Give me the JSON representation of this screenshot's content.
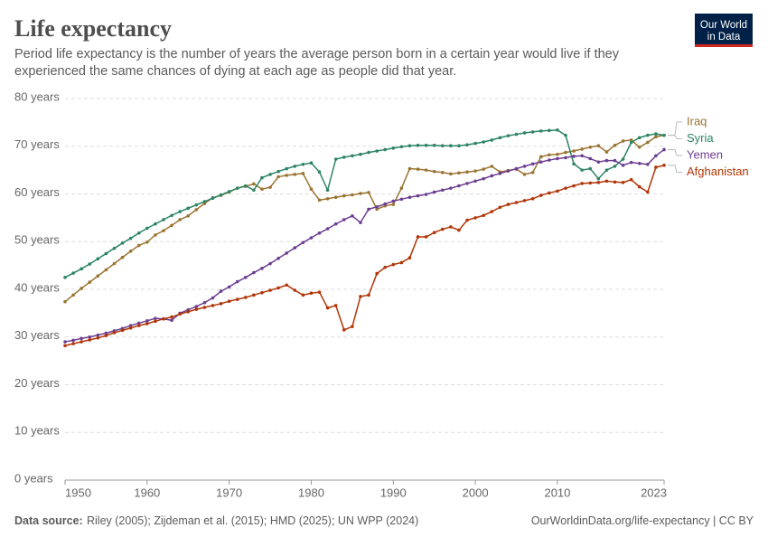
{
  "header": {
    "title": "Life expectancy",
    "subtitle": "Period life expectancy is the number of years the average person born in a certain year would live if they experienced the same chances of dying at each age as people did that year.",
    "logo": [
      "Our World",
      "in Data"
    ]
  },
  "chart_data": {
    "type": "line",
    "x": [
      1950,
      1951,
      1952,
      1953,
      1954,
      1955,
      1956,
      1957,
      1958,
      1959,
      1960,
      1961,
      1962,
      1963,
      1964,
      1965,
      1966,
      1967,
      1968,
      1969,
      1970,
      1971,
      1972,
      1973,
      1974,
      1975,
      1976,
      1977,
      1978,
      1979,
      1980,
      1981,
      1982,
      1983,
      1984,
      1985,
      1986,
      1987,
      1988,
      1989,
      1990,
      1991,
      1992,
      1993,
      1994,
      1995,
      1996,
      1997,
      1998,
      1999,
      2000,
      2001,
      2002,
      2003,
      2004,
      2005,
      2006,
      2007,
      2008,
      2009,
      2010,
      2011,
      2012,
      2013,
      2014,
      2015,
      2016,
      2017,
      2018,
      2019,
      2020,
      2021,
      2022,
      2023
    ],
    "xlim": [
      1950,
      2023
    ],
    "xticks": [
      1950,
      1960,
      1970,
      1980,
      1990,
      2000,
      2010,
      2023
    ],
    "ylim": [
      0,
      80
    ],
    "yticks": [
      {
        "value": 0,
        "label": "0 years"
      },
      {
        "value": 10,
        "label": "10 years"
      },
      {
        "value": 20,
        "label": "20 years"
      },
      {
        "value": 30,
        "label": "30 years"
      },
      {
        "value": 40,
        "label": "40 years"
      },
      {
        "value": 50,
        "label": "50 years"
      },
      {
        "value": 60,
        "label": "60 years"
      },
      {
        "value": 70,
        "label": "70 years"
      },
      {
        "value": 80,
        "label": "80 years"
      }
    ],
    "grid": true,
    "series": [
      {
        "name": "Iraq",
        "color": "#9a7432",
        "values": [
          37.4,
          38.8,
          40.2,
          41.5,
          42.8,
          44.1,
          45.4,
          46.7,
          48.0,
          49.2,
          49.9,
          51.4,
          52.3,
          53.4,
          54.6,
          55.4,
          56.7,
          58.0,
          59.2,
          59.7,
          60.4,
          61.2,
          61.6,
          62.1,
          61.0,
          61.4,
          63.6,
          63.9,
          64.1,
          64.3,
          61.0,
          58.7,
          59.0,
          59.3,
          59.6,
          59.8,
          60.1,
          60.3,
          56.8,
          57.5,
          57.8,
          61.2,
          65.3,
          65.2,
          65.0,
          64.7,
          64.5,
          64.2,
          64.4,
          64.6,
          64.8,
          65.2,
          65.8,
          64.6,
          64.9,
          65.2,
          64.1,
          64.5,
          67.8,
          68.2,
          68.3,
          68.7,
          69.0,
          69.4,
          69.8,
          70.1,
          68.8,
          70.2,
          71.1,
          71.3,
          69.8,
          70.8,
          72.0,
          72.3
        ]
      },
      {
        "name": "Syria",
        "color": "#2c8465",
        "values": [
          42.5,
          43.4,
          44.3,
          45.3,
          46.4,
          47.5,
          48.6,
          49.7,
          50.7,
          51.8,
          52.8,
          53.7,
          54.6,
          55.5,
          56.3,
          57.0,
          57.7,
          58.4,
          59.1,
          59.8,
          60.5,
          61.2,
          61.7,
          60.8,
          63.4,
          64.1,
          64.7,
          65.3,
          65.8,
          66.2,
          66.5,
          64.6,
          60.8,
          67.3,
          67.7,
          68.0,
          68.3,
          68.7,
          69.0,
          69.3,
          69.6,
          69.9,
          70.1,
          70.2,
          70.2,
          70.2,
          70.1,
          70.1,
          70.1,
          70.3,
          70.6,
          70.9,
          71.3,
          71.8,
          72.2,
          72.5,
          72.8,
          73.0,
          73.2,
          73.3,
          73.4,
          72.3,
          66.3,
          65.0,
          65.3,
          63.2,
          65.0,
          65.8,
          67.3,
          70.8,
          71.8,
          72.3,
          72.6,
          72.3
        ]
      },
      {
        "name": "Yemen",
        "color": "#6d3e91",
        "values": [
          29.0,
          29.3,
          29.7,
          30.0,
          30.4,
          30.8,
          31.3,
          31.8,
          32.4,
          32.9,
          33.4,
          33.9,
          33.8,
          33.5,
          35.0,
          35.7,
          36.4,
          37.2,
          38.2,
          39.6,
          40.5,
          41.6,
          42.5,
          43.5,
          44.4,
          45.4,
          46.5,
          47.6,
          48.7,
          49.8,
          50.8,
          51.8,
          52.7,
          53.7,
          54.6,
          55.4,
          54.0,
          56.8,
          57.3,
          57.9,
          58.5,
          58.9,
          59.3,
          59.6,
          59.9,
          60.4,
          60.8,
          61.2,
          61.7,
          62.2,
          62.7,
          63.2,
          63.8,
          64.3,
          64.8,
          65.3,
          65.8,
          66.3,
          66.7,
          67.1,
          67.4,
          67.6,
          67.9,
          68.0,
          67.4,
          66.7,
          67.0,
          67.0,
          66.0,
          66.6,
          66.4,
          66.2,
          68.0,
          69.3
        ]
      },
      {
        "name": "Afghanistan",
        "color": "#b13507",
        "values": [
          28.2,
          28.6,
          29.0,
          29.4,
          29.8,
          30.3,
          30.9,
          31.4,
          31.9,
          32.4,
          32.8,
          33.3,
          33.8,
          34.2,
          34.8,
          35.3,
          35.8,
          36.2,
          36.6,
          37.0,
          37.5,
          37.9,
          38.3,
          38.8,
          39.3,
          39.8,
          40.3,
          40.9,
          39.8,
          38.8,
          39.2,
          39.4,
          36.1,
          36.6,
          31.5,
          32.2,
          38.5,
          38.8,
          43.3,
          44.6,
          45.2,
          45.6,
          46.6,
          51.0,
          51.0,
          51.9,
          52.6,
          53.1,
          52.4,
          54.5,
          55.0,
          55.5,
          56.3,
          57.2,
          57.8,
          58.2,
          58.6,
          59.0,
          59.7,
          60.2,
          60.6,
          61.2,
          61.7,
          62.2,
          62.3,
          62.4,
          62.7,
          62.5,
          62.4,
          63.0,
          61.5,
          60.4,
          65.6,
          66.0
        ]
      }
    ]
  },
  "footer": {
    "source_label": "Data source:",
    "source": "Riley (2005); Zijdeman et al. (2015); HMD (2025); UN WPP (2024)",
    "url": "OurWorldinData.org/life-expectancy | CC BY"
  }
}
